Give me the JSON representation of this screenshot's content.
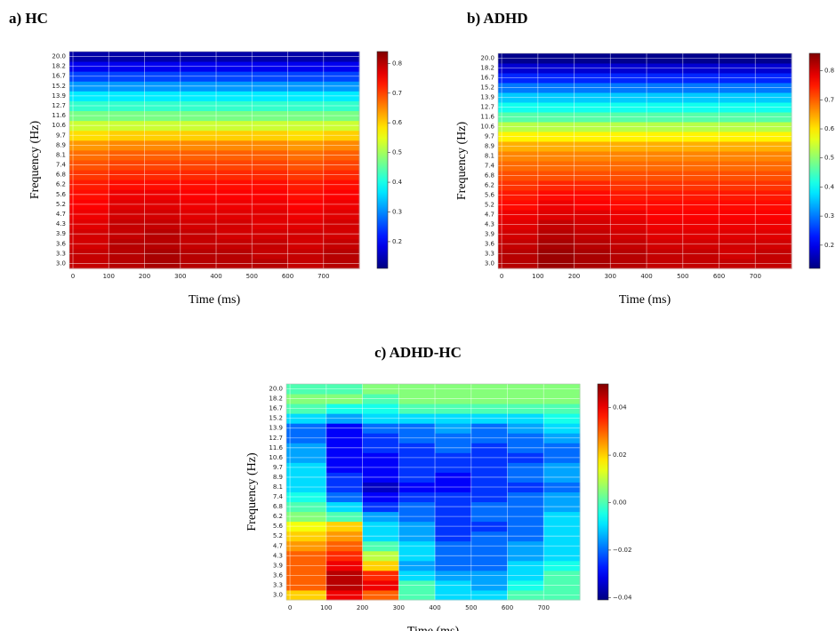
{
  "chart_data": [
    {
      "type": "heatmap",
      "title": "a) HC",
      "xlabel": "Time (ms)",
      "ylabel": "Frequency (Hz)",
      "colormap": "jet",
      "grid": true,
      "x": [
        0,
        100,
        200,
        300,
        400,
        500,
        600,
        700
      ],
      "xlim": [
        -10,
        800
      ],
      "xticks": [
        0,
        100,
        200,
        300,
        400,
        500,
        600,
        700
      ],
      "categories": [
        "3.0",
        "3.3",
        "3.6",
        "3.9",
        "4.3",
        "4.7",
        "5.2",
        "5.6",
        "6.2",
        "6.8",
        "7.4",
        "8.1",
        "8.9",
        "9.7",
        "10.6",
        "11.6",
        "12.7",
        "13.9",
        "15.2",
        "16.7",
        "18.2",
        "20.0"
      ],
      "zlim": [
        0.11,
        0.84
      ],
      "zticks": [
        0.2,
        0.3,
        0.4,
        0.5,
        0.6,
        0.7,
        0.8
      ],
      "values": [
        [
          0.79,
          0.8,
          0.81,
          0.8,
          0.8,
          0.8,
          0.79,
          0.8
        ],
        [
          0.79,
          0.8,
          0.81,
          0.8,
          0.8,
          0.79,
          0.79,
          0.8
        ],
        [
          0.78,
          0.8,
          0.8,
          0.79,
          0.79,
          0.79,
          0.78,
          0.79
        ],
        [
          0.78,
          0.79,
          0.8,
          0.79,
          0.78,
          0.78,
          0.78,
          0.78
        ],
        [
          0.77,
          0.79,
          0.79,
          0.78,
          0.78,
          0.77,
          0.77,
          0.78
        ],
        [
          0.76,
          0.78,
          0.78,
          0.77,
          0.77,
          0.77,
          0.76,
          0.77
        ],
        [
          0.75,
          0.77,
          0.77,
          0.76,
          0.76,
          0.76,
          0.75,
          0.76
        ],
        [
          0.74,
          0.76,
          0.76,
          0.75,
          0.75,
          0.75,
          0.74,
          0.75
        ],
        [
          0.73,
          0.74,
          0.74,
          0.74,
          0.74,
          0.74,
          0.73,
          0.74
        ],
        [
          0.71,
          0.72,
          0.72,
          0.72,
          0.72,
          0.72,
          0.71,
          0.72
        ],
        [
          0.69,
          0.7,
          0.7,
          0.7,
          0.7,
          0.7,
          0.69,
          0.7
        ],
        [
          0.67,
          0.68,
          0.68,
          0.68,
          0.68,
          0.68,
          0.67,
          0.68
        ],
        [
          0.64,
          0.65,
          0.65,
          0.65,
          0.65,
          0.65,
          0.64,
          0.65
        ],
        [
          0.59,
          0.6,
          0.6,
          0.6,
          0.6,
          0.6,
          0.59,
          0.6
        ],
        [
          0.53,
          0.53,
          0.53,
          0.53,
          0.53,
          0.53,
          0.53,
          0.53
        ],
        [
          0.47,
          0.47,
          0.47,
          0.47,
          0.47,
          0.47,
          0.47,
          0.47
        ],
        [
          0.42,
          0.42,
          0.42,
          0.42,
          0.42,
          0.42,
          0.42,
          0.42
        ],
        [
          0.37,
          0.37,
          0.37,
          0.37,
          0.37,
          0.37,
          0.37,
          0.37
        ],
        [
          0.31,
          0.31,
          0.31,
          0.31,
          0.31,
          0.31,
          0.31,
          0.31
        ],
        [
          0.25,
          0.25,
          0.25,
          0.25,
          0.25,
          0.25,
          0.25,
          0.25
        ],
        [
          0.19,
          0.19,
          0.19,
          0.19,
          0.19,
          0.19,
          0.19,
          0.19
        ],
        [
          0.14,
          0.14,
          0.14,
          0.14,
          0.14,
          0.14,
          0.14,
          0.14
        ]
      ]
    },
    {
      "type": "heatmap",
      "title": "b) ADHD",
      "xlabel": "Time (ms)",
      "ylabel": "Frequency (Hz)",
      "colormap": "jet",
      "grid": true,
      "x": [
        0,
        100,
        200,
        300,
        400,
        500,
        600,
        700
      ],
      "xlim": [
        -10,
        800
      ],
      "xticks": [
        0,
        100,
        200,
        300,
        400,
        500,
        600,
        700
      ],
      "categories": [
        "3.0",
        "3.3",
        "3.6",
        "3.9",
        "4.3",
        "4.7",
        "5.2",
        "5.6",
        "6.2",
        "6.8",
        "7.4",
        "8.1",
        "8.9",
        "9.7",
        "10.6",
        "11.6",
        "12.7",
        "13.9",
        "15.2",
        "16.7",
        "18.2",
        "20.0"
      ],
      "zlim": [
        0.12,
        0.86
      ],
      "zticks": [
        0.2,
        0.3,
        0.4,
        0.5,
        0.6,
        0.7,
        0.8
      ],
      "values": [
        [
          0.82,
          0.84,
          0.83,
          0.82,
          0.81,
          0.81,
          0.81,
          0.81
        ],
        [
          0.82,
          0.84,
          0.83,
          0.82,
          0.81,
          0.81,
          0.8,
          0.81
        ],
        [
          0.81,
          0.83,
          0.82,
          0.81,
          0.8,
          0.8,
          0.8,
          0.8
        ],
        [
          0.8,
          0.82,
          0.81,
          0.8,
          0.79,
          0.79,
          0.79,
          0.79
        ],
        [
          0.79,
          0.81,
          0.8,
          0.79,
          0.78,
          0.78,
          0.78,
          0.78
        ],
        [
          0.78,
          0.79,
          0.79,
          0.78,
          0.77,
          0.77,
          0.77,
          0.77
        ],
        [
          0.76,
          0.78,
          0.77,
          0.76,
          0.76,
          0.76,
          0.76,
          0.76
        ],
        [
          0.75,
          0.76,
          0.76,
          0.75,
          0.75,
          0.75,
          0.75,
          0.75
        ],
        [
          0.73,
          0.74,
          0.74,
          0.73,
          0.73,
          0.73,
          0.73,
          0.73
        ],
        [
          0.71,
          0.71,
          0.71,
          0.71,
          0.71,
          0.71,
          0.71,
          0.71
        ],
        [
          0.69,
          0.69,
          0.69,
          0.69,
          0.69,
          0.69,
          0.69,
          0.69
        ],
        [
          0.67,
          0.67,
          0.67,
          0.67,
          0.67,
          0.67,
          0.67,
          0.67
        ],
        [
          0.64,
          0.64,
          0.64,
          0.64,
          0.64,
          0.64,
          0.64,
          0.64
        ],
        [
          0.59,
          0.59,
          0.59,
          0.59,
          0.59,
          0.59,
          0.59,
          0.59
        ],
        [
          0.53,
          0.53,
          0.53,
          0.53,
          0.53,
          0.53,
          0.53,
          0.53
        ],
        [
          0.46,
          0.46,
          0.46,
          0.46,
          0.46,
          0.46,
          0.46,
          0.46
        ],
        [
          0.41,
          0.41,
          0.41,
          0.41,
          0.41,
          0.41,
          0.41,
          0.41
        ],
        [
          0.36,
          0.36,
          0.36,
          0.36,
          0.36,
          0.36,
          0.36,
          0.36
        ],
        [
          0.3,
          0.3,
          0.3,
          0.3,
          0.3,
          0.3,
          0.3,
          0.3
        ],
        [
          0.24,
          0.24,
          0.24,
          0.24,
          0.24,
          0.24,
          0.24,
          0.24
        ],
        [
          0.18,
          0.18,
          0.18,
          0.18,
          0.18,
          0.18,
          0.18,
          0.18
        ],
        [
          0.13,
          0.13,
          0.13,
          0.13,
          0.13,
          0.13,
          0.13,
          0.13
        ]
      ]
    },
    {
      "type": "heatmap",
      "title": "c) ADHD-HC",
      "xlabel": "Time (ms)",
      "ylabel": "Frequency (Hz)",
      "colormap": "jet",
      "grid": true,
      "x": [
        0,
        100,
        200,
        300,
        400,
        500,
        600,
        700
      ],
      "xlim": [
        -10,
        800
      ],
      "xticks": [
        0,
        100,
        200,
        300,
        400,
        500,
        600,
        700
      ],
      "categories": [
        "3.0",
        "3.3",
        "3.6",
        "3.9",
        "4.3",
        "4.7",
        "5.2",
        "5.6",
        "6.2",
        "6.8",
        "7.4",
        "8.1",
        "8.9",
        "9.7",
        "10.6",
        "11.6",
        "12.7",
        "13.9",
        "15.2",
        "16.7",
        "18.2",
        "20.0"
      ],
      "zlim": [
        -0.041,
        0.05
      ],
      "zticks": [
        {
          "value": -0.04,
          "label": "−0.04"
        },
        {
          "value": -0.02,
          "label": "−0.02"
        },
        {
          "value": 0,
          "label": "0.00"
        },
        {
          "value": 0.02,
          "label": "0.02"
        },
        {
          "value": 0.04,
          "label": "0.04"
        }
      ],
      "values": [
        [
          0.02,
          0.04,
          0.03,
          0.0,
          -0.01,
          -0.01,
          0.0,
          0.0
        ],
        [
          0.03,
          0.045,
          0.04,
          0.0,
          -0.01,
          -0.015,
          -0.005,
          0.0
        ],
        [
          0.03,
          0.045,
          0.035,
          -0.01,
          -0.015,
          -0.015,
          -0.01,
          0.0
        ],
        [
          0.03,
          0.04,
          0.02,
          -0.015,
          -0.02,
          -0.02,
          -0.01,
          -0.005
        ],
        [
          0.03,
          0.035,
          0.01,
          -0.01,
          -0.02,
          -0.02,
          -0.015,
          -0.01
        ],
        [
          0.025,
          0.03,
          0.0,
          -0.01,
          -0.02,
          -0.02,
          -0.015,
          -0.01
        ],
        [
          0.02,
          0.025,
          -0.01,
          -0.015,
          -0.025,
          -0.02,
          -0.02,
          -0.01
        ],
        [
          0.015,
          0.02,
          -0.01,
          -0.015,
          -0.025,
          -0.025,
          -0.02,
          -0.01
        ],
        [
          0.005,
          0.0,
          -0.015,
          -0.02,
          -0.025,
          -0.02,
          -0.02,
          -0.01
        ],
        [
          0.0,
          -0.01,
          -0.025,
          -0.02,
          -0.025,
          -0.02,
          -0.02,
          -0.015
        ],
        [
          -0.005,
          -0.02,
          -0.03,
          -0.025,
          -0.025,
          -0.025,
          -0.02,
          -0.015
        ],
        [
          -0.01,
          -0.025,
          -0.035,
          -0.03,
          -0.03,
          -0.025,
          -0.025,
          -0.02
        ],
        [
          -0.01,
          -0.025,
          -0.03,
          -0.025,
          -0.03,
          -0.025,
          -0.02,
          -0.015
        ],
        [
          -0.01,
          -0.03,
          -0.03,
          -0.025,
          -0.025,
          -0.025,
          -0.02,
          -0.015
        ],
        [
          -0.015,
          -0.03,
          -0.03,
          -0.025,
          -0.025,
          -0.025,
          -0.025,
          -0.02
        ],
        [
          -0.015,
          -0.03,
          -0.025,
          -0.025,
          -0.02,
          -0.025,
          -0.02,
          -0.02
        ],
        [
          -0.02,
          -0.03,
          -0.025,
          -0.02,
          -0.02,
          -0.02,
          -0.02,
          -0.015
        ],
        [
          -0.02,
          -0.03,
          -0.02,
          -0.02,
          -0.015,
          -0.02,
          -0.015,
          -0.01
        ],
        [
          -0.01,
          -0.015,
          -0.01,
          -0.01,
          -0.01,
          -0.01,
          -0.01,
          -0.005
        ],
        [
          0.0,
          -0.005,
          -0.005,
          0.0,
          0.0,
          0.0,
          0.0,
          0.0
        ],
        [
          0.005,
          0.005,
          0.0,
          0.005,
          0.005,
          0.005,
          0.005,
          0.005
        ],
        [
          0.0,
          0.0,
          0.005,
          0.005,
          0.005,
          0.005,
          0.005,
          0.005
        ]
      ]
    }
  ]
}
